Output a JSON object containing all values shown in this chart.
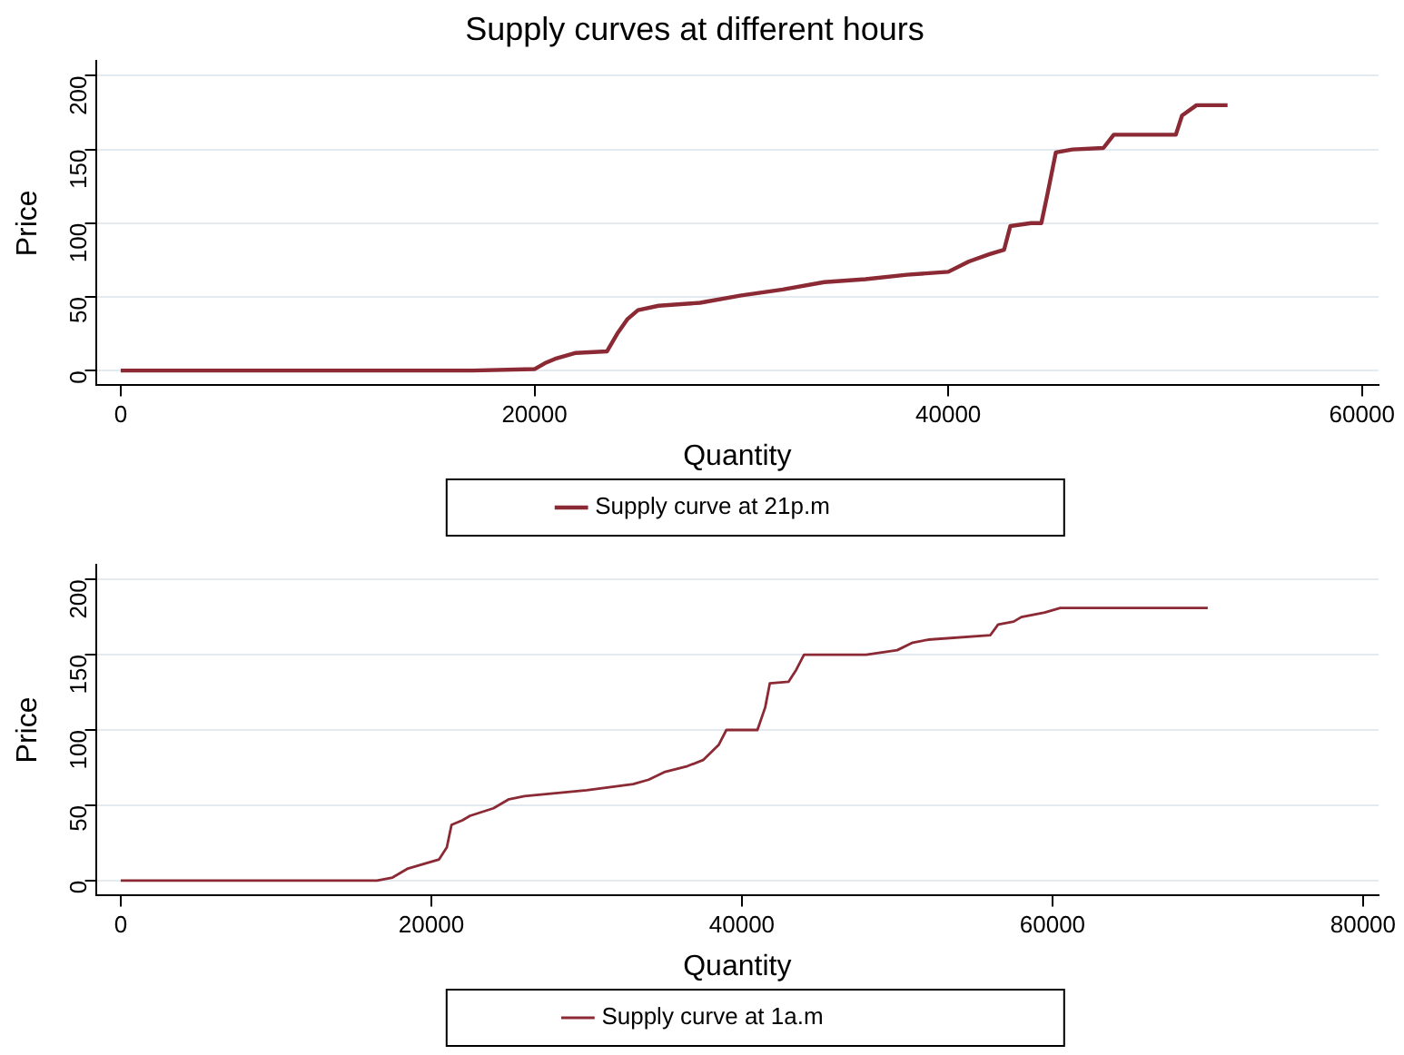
{
  "chart_data": [
    {
      "type": "line",
      "title": "Supply curves at different hours",
      "xlabel": "Quantity",
      "ylabel": "Price",
      "xlim": [
        -1200,
        60800
      ],
      "xticks": [
        0,
        20000,
        40000,
        60000
      ],
      "ylim": [
        -10,
        210
      ],
      "yticks": [
        0,
        50,
        100,
        150,
        200
      ],
      "grid": "y",
      "legend": "bottom",
      "marker": "none",
      "series": [
        {
          "name": "Supply curve at 21p.m",
          "color": "#8b2a35",
          "x": [
            0,
            17000,
            20000,
            20500,
            21000,
            22000,
            23500,
            24000,
            24500,
            25000,
            26000,
            28000,
            30000,
            32000,
            34000,
            36000,
            38000,
            40000,
            41000,
            42000,
            42700,
            43000,
            44000,
            44500,
            44800,
            45200,
            46000,
            47500,
            48000,
            51000,
            51300,
            52000,
            53500
          ],
          "values": [
            0,
            0,
            1,
            5,
            8,
            12,
            13,
            25,
            35,
            41,
            44,
            46,
            51,
            55,
            60,
            62,
            65,
            67,
            74,
            79,
            82,
            98,
            100,
            100,
            120,
            148,
            150,
            151,
            160,
            160,
            173,
            180,
            180
          ]
        }
      ]
    },
    {
      "type": "line",
      "xlabel": "Quantity",
      "ylabel": "Price",
      "xlim": [
        -1600,
        81000
      ],
      "xticks": [
        0,
        20000,
        40000,
        60000,
        80000
      ],
      "ylim": [
        -10,
        210
      ],
      "yticks": [
        0,
        50,
        100,
        150,
        200
      ],
      "grid": "y",
      "legend": "bottom",
      "marker": "none",
      "series": [
        {
          "name": "Supply curve at 1a.m",
          "color": "#8b2a35",
          "x": [
            0,
            16500,
            17500,
            18500,
            19500,
            20500,
            21000,
            21300,
            22000,
            22500,
            24000,
            25000,
            26000,
            28000,
            30000,
            33000,
            34000,
            35000,
            36500,
            37500,
            38500,
            39000,
            40000,
            41000,
            41500,
            41800,
            43000,
            43500,
            44000,
            48000,
            50000,
            51000,
            52000,
            56000,
            56500,
            57500,
            58000,
            59500,
            60500,
            70000
          ],
          "values": [
            0,
            0,
            2,
            8,
            11,
            14,
            22,
            37,
            40,
            43,
            48,
            54,
            56,
            58,
            60,
            64,
            67,
            72,
            76,
            80,
            90,
            100,
            100,
            100,
            115,
            131,
            132,
            140,
            150,
            150,
            153,
            158,
            160,
            163,
            170,
            172,
            175,
            178,
            181,
            181
          ]
        }
      ]
    }
  ]
}
